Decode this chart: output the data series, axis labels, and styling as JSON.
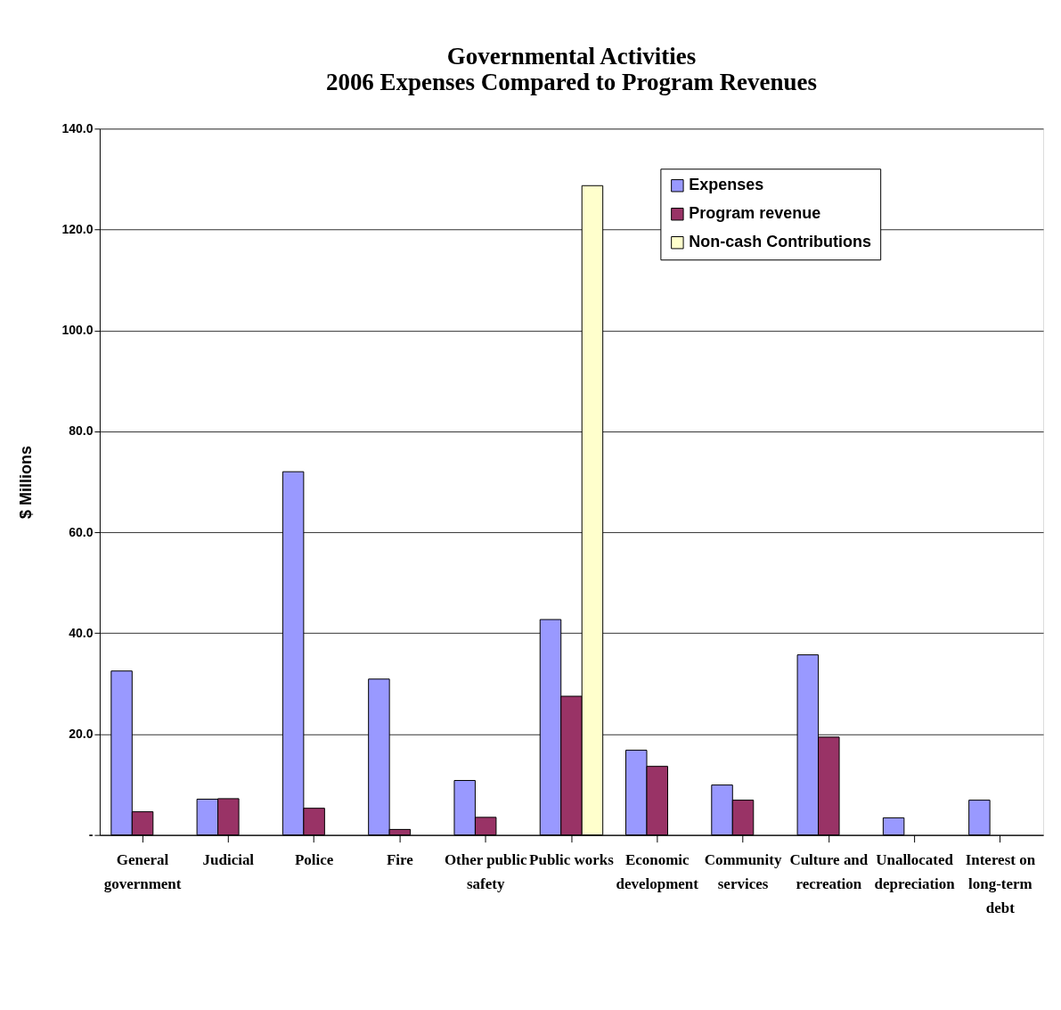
{
  "chart_data": {
    "type": "bar",
    "title": [
      "Governmental Activities",
      "2006 Expenses Compared to Program Revenues"
    ],
    "ylabel": "$ Millions",
    "categories": [
      "General\ngovernment",
      "Judicial",
      "Police",
      "Fire",
      "Other public\nsafety",
      "Public works",
      "Economic\ndevelopment",
      "Community\nservices",
      "Culture and\nrecreation",
      "Unallocated\ndepreciation",
      "Interest on\nlong-term\ndebt"
    ],
    "series": [
      {
        "name": "Expenses",
        "color": "#9999ff",
        "values": [
          32.5,
          7.1,
          72.0,
          30.9,
          10.8,
          42.7,
          16.8,
          9.9,
          35.7,
          3.4,
          6.9
        ]
      },
      {
        "name": "Program revenue",
        "color": "#993366",
        "values": [
          4.6,
          7.2,
          5.3,
          1.1,
          3.5,
          27.5,
          13.6,
          6.9,
          19.4,
          null,
          null
        ]
      },
      {
        "name": "Non-cash Contributions",
        "color": "#ffffcc",
        "values": [
          null,
          null,
          null,
          null,
          null,
          128.7,
          null,
          null,
          null,
          null,
          null
        ]
      }
    ],
    "ylim": [
      0,
      140
    ],
    "yticks": [
      {
        "value": 0,
        "label": "-"
      },
      {
        "value": 20,
        "label": "20.0"
      },
      {
        "value": 40,
        "label": "40.0"
      },
      {
        "value": 60,
        "label": "60.0"
      },
      {
        "value": 80,
        "label": "80.0"
      },
      {
        "value": 100,
        "label": "100.0"
      },
      {
        "value": 120,
        "label": "120.0"
      },
      {
        "value": 140,
        "label": "140.0"
      }
    ],
    "grid": "y",
    "legend": "top right"
  }
}
